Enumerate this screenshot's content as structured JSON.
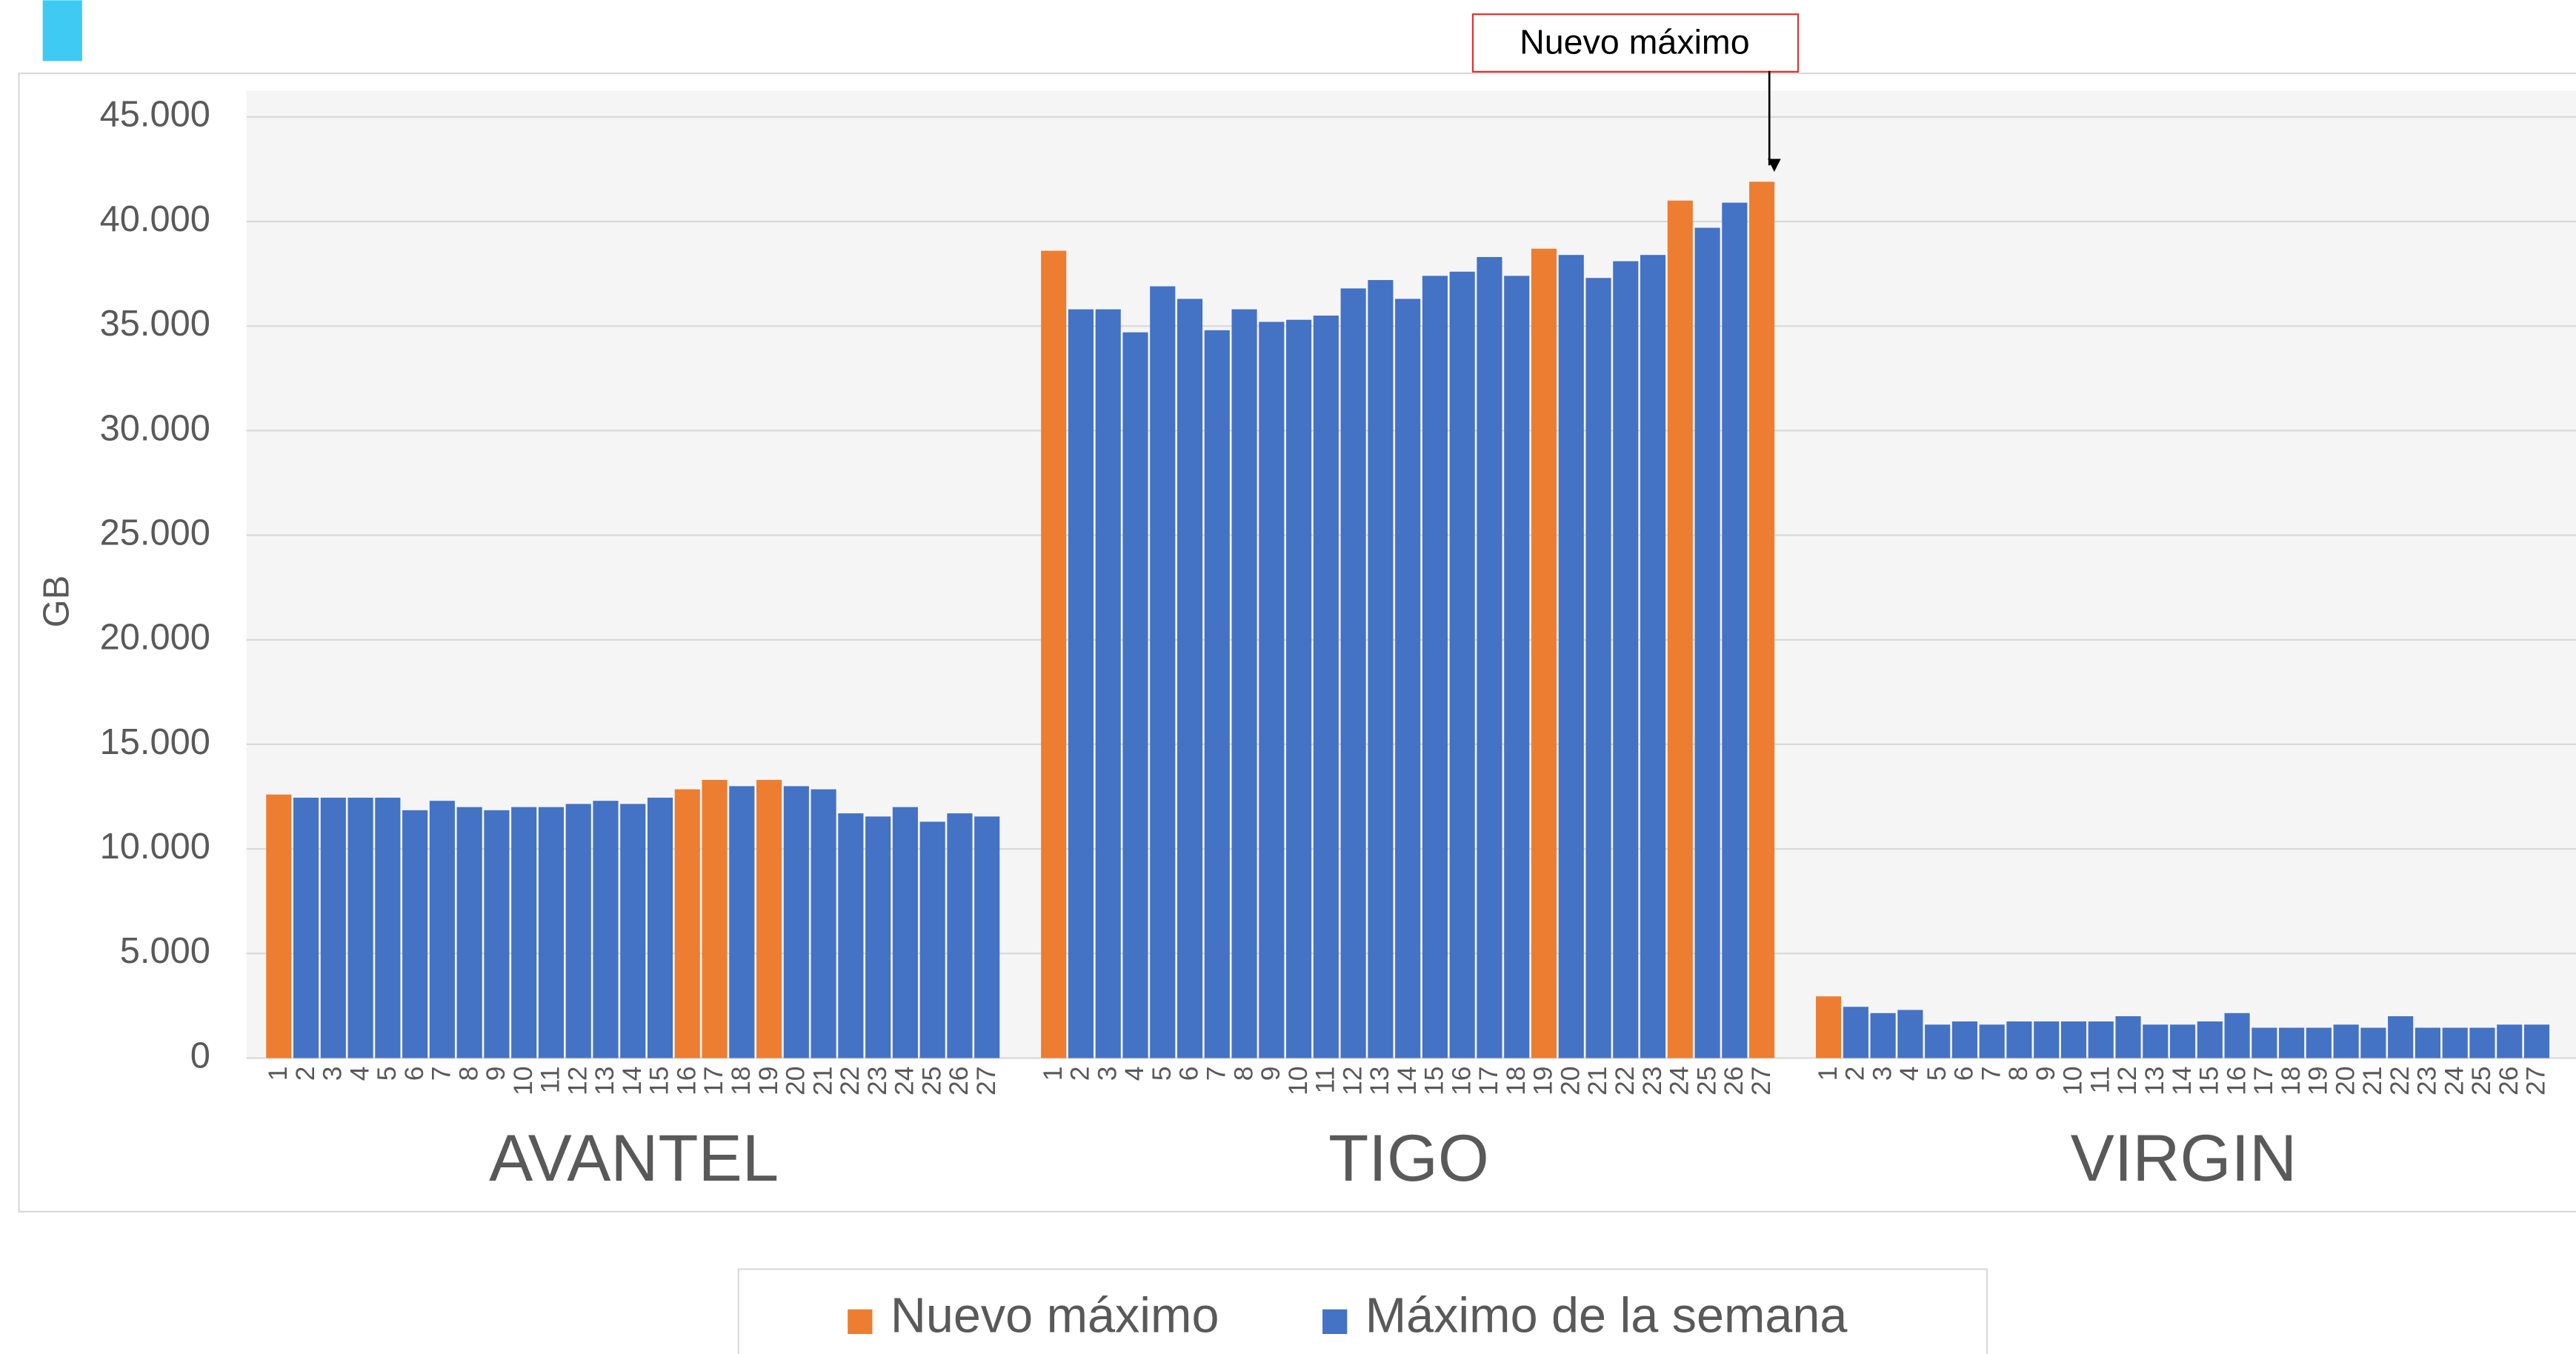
{
  "chart_data": {
    "type": "grouped-bar",
    "y_label": "GB",
    "annotation": "Nuevo máximo",
    "groups": [
      "AVANTEL",
      "TIGO",
      "VIRGIN"
    ],
    "categories": [
      "1",
      "2",
      "3",
      "4",
      "5",
      "6",
      "7",
      "8",
      "9",
      "10",
      "11",
      "12",
      "13",
      "14",
      "15",
      "16",
      "17",
      "18",
      "19",
      "20",
      "21",
      "22",
      "23",
      "24",
      "25",
      "26",
      "27"
    ],
    "series": [
      {
        "name": "Nuevo máximo",
        "color": "#ed7d31",
        "values": [
          [
            12600,
            null,
            null,
            null,
            null,
            null,
            null,
            null,
            null,
            null,
            null,
            null,
            null,
            null,
            null,
            12850,
            13300,
            null,
            13300,
            null,
            null,
            null,
            null,
            null,
            null,
            null,
            null
          ],
          [
            38600,
            null,
            null,
            null,
            null,
            null,
            null,
            null,
            null,
            null,
            null,
            null,
            null,
            null,
            null,
            null,
            null,
            null,
            38700,
            null,
            null,
            null,
            null,
            41000,
            null,
            null,
            41900
          ],
          [
            2950,
            null,
            null,
            null,
            null,
            null,
            null,
            null,
            null,
            null,
            null,
            null,
            null,
            null,
            null,
            null,
            null,
            null,
            null,
            null,
            null,
            null,
            null,
            null,
            null,
            null,
            null
          ]
        ]
      },
      {
        "name": "Máximo de la semana",
        "color": "#4472c4",
        "values": [
          [
            null,
            12450,
            12450,
            12450,
            12450,
            11850,
            12300,
            12000,
            11850,
            12000,
            12000,
            12150,
            12300,
            12150,
            12450,
            null,
            null,
            13000,
            null,
            13000,
            12850,
            11700,
            11550,
            12000,
            11300,
            11700,
            11550
          ],
          [
            null,
            35800,
            35800,
            34700,
            36900,
            36300,
            34800,
            35800,
            35200,
            35300,
            35500,
            36800,
            37200,
            36300,
            37400,
            37600,
            38300,
            37400,
            null,
            38400,
            37300,
            38100,
            38400,
            null,
            39700,
            40900,
            null
          ],
          [
            null,
            2450,
            2150,
            2300,
            1600,
            1750,
            1600,
            1750,
            1750,
            1750,
            1750,
            2000,
            1600,
            1600,
            1750,
            2150,
            1450,
            1450,
            1450,
            1600,
            1450,
            2000,
            1450,
            1450,
            1450,
            1600,
            1600
          ]
        ]
      }
    ],
    "ylim": [
      0,
      45000
    ],
    "yticks": [
      0,
      {
        "value": 5000,
        "label": "5.000"
      },
      {
        "value": 10000,
        "label": "10.000"
      },
      {
        "value": 15000,
        "label": "15.000"
      },
      {
        "value": 20000,
        "label": "20.000"
      },
      {
        "value": 25000,
        "label": "25.000"
      },
      {
        "value": 30000,
        "label": "30.000"
      },
      {
        "value": 35000,
        "label": "35.000"
      },
      {
        "value": 40000,
        "label": "40.000"
      },
      {
        "value": 45000,
        "label": "45.000"
      }
    ],
    "grid": true
  }
}
